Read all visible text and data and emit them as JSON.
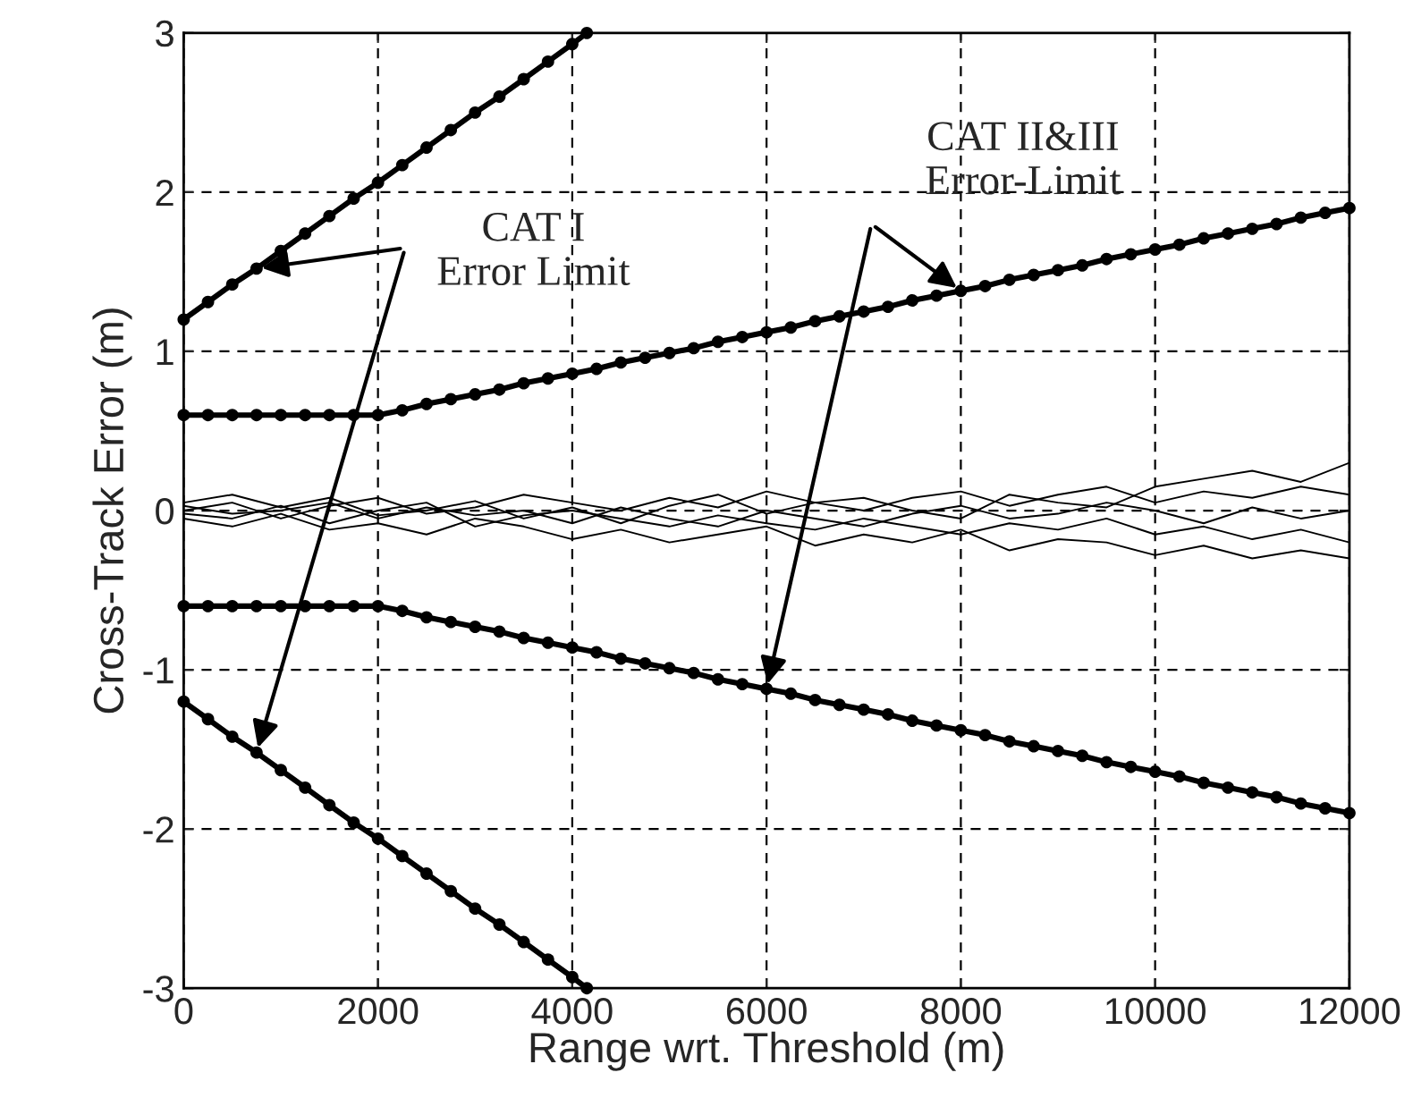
{
  "chart_data": {
    "type": "line",
    "xlabel": "Range wrt. Threshold (m)",
    "ylabel": "Cross-Track Error (m)",
    "xlim": [
      0,
      12000
    ],
    "ylim": [
      -3,
      3
    ],
    "xticks": [
      0,
      2000,
      4000,
      6000,
      8000,
      10000,
      12000
    ],
    "yticks": [
      -3,
      -2,
      -1,
      0,
      1,
      2,
      3
    ],
    "grid": true,
    "line_style": "solid",
    "annotations": [
      {
        "text": "CAT I\nError Limit",
        "x": 750,
        "y": 1.52
      },
      {
        "text": "CAT II&III\nError-Limit",
        "x": 8000,
        "y": 1.38
      }
    ],
    "series": [
      {
        "color": "#000000",
        "marker": "circle",
        "x": [
          0,
          250,
          500,
          750,
          1000,
          1250,
          1500,
          1750,
          2000,
          2250,
          2500,
          2750,
          3000,
          3250,
          3500,
          3750,
          4000,
          4150
        ],
        "values": [
          1.2,
          1.31,
          1.42,
          1.52,
          1.63,
          1.74,
          1.85,
          1.96,
          2.06,
          2.17,
          2.28,
          2.39,
          2.5,
          2.6,
          2.71,
          2.82,
          2.93,
          3.0
        ]
      },
      {
        "color": "#000000",
        "marker": "circle",
        "x": [
          0,
          250,
          500,
          750,
          1000,
          1250,
          1500,
          1750,
          2000,
          2250,
          2500,
          2750,
          3000,
          3250,
          3500,
          3750,
          4000,
          4150
        ],
        "values": [
          -1.2,
          -1.31,
          -1.42,
          -1.52,
          -1.63,
          -1.74,
          -1.85,
          -1.96,
          -2.06,
          -2.17,
          -2.28,
          -2.39,
          -2.5,
          -2.6,
          -2.71,
          -2.82,
          -2.93,
          -3.0
        ]
      },
      {
        "color": "#000000",
        "marker": "circle",
        "x": [
          0,
          250,
          500,
          750,
          1000,
          1250,
          1500,
          1750,
          2000,
          2250,
          2500,
          2750,
          3000,
          3250,
          3500,
          3750,
          4000,
          4250,
          4500,
          4750,
          5000,
          5250,
          5500,
          5750,
          6000,
          6250,
          6500,
          6750,
          7000,
          7250,
          7500,
          7750,
          8000,
          8250,
          8500,
          8750,
          9000,
          9250,
          9500,
          9750,
          10000,
          10250,
          10500,
          10750,
          11000,
          11250,
          11500,
          11750,
          12000
        ],
        "values": [
          0.6,
          0.6,
          0.6,
          0.6,
          0.6,
          0.6,
          0.6,
          0.6,
          0.6,
          0.63,
          0.67,
          0.7,
          0.73,
          0.76,
          0.8,
          0.83,
          0.86,
          0.89,
          0.93,
          0.96,
          0.99,
          1.02,
          1.06,
          1.09,
          1.12,
          1.15,
          1.19,
          1.22,
          1.25,
          1.28,
          1.32,
          1.35,
          1.38,
          1.41,
          1.45,
          1.48,
          1.51,
          1.54,
          1.58,
          1.61,
          1.64,
          1.67,
          1.71,
          1.74,
          1.77,
          1.8,
          1.84,
          1.87,
          1.9
        ]
      },
      {
        "color": "#000000",
        "marker": "circle",
        "x": [
          0,
          250,
          500,
          750,
          1000,
          1250,
          1500,
          1750,
          2000,
          2250,
          2500,
          2750,
          3000,
          3250,
          3500,
          3750,
          4000,
          4250,
          4500,
          4750,
          5000,
          5250,
          5500,
          5750,
          6000,
          6250,
          6500,
          6750,
          7000,
          7250,
          7500,
          7750,
          8000,
          8250,
          8500,
          8750,
          9000,
          9250,
          9500,
          9750,
          10000,
          10250,
          10500,
          10750,
          11000,
          11250,
          11500,
          11750,
          12000
        ],
        "values": [
          -0.6,
          -0.6,
          -0.6,
          -0.6,
          -0.6,
          -0.6,
          -0.6,
          -0.6,
          -0.6,
          -0.63,
          -0.67,
          -0.7,
          -0.73,
          -0.76,
          -0.8,
          -0.83,
          -0.86,
          -0.89,
          -0.93,
          -0.96,
          -0.99,
          -1.02,
          -1.06,
          -1.09,
          -1.12,
          -1.15,
          -1.19,
          -1.22,
          -1.25,
          -1.28,
          -1.32,
          -1.35,
          -1.38,
          -1.41,
          -1.45,
          -1.48,
          -1.51,
          -1.54,
          -1.58,
          -1.61,
          -1.64,
          -1.67,
          -1.71,
          -1.74,
          -1.77,
          -1.8,
          -1.84,
          -1.87,
          -1.9
        ]
      },
      {
        "color": "#000000",
        "marker": "none",
        "x": [
          0,
          500,
          1000,
          1500,
          2000,
          2500,
          3000,
          3500,
          4000,
          4500,
          5000,
          5500,
          6000,
          6500,
          7000,
          7500,
          8000,
          8500,
          9000,
          9500,
          10000,
          10500,
          11000,
          11500,
          12000
        ],
        "values": [
          0.05,
          0.1,
          0.02,
          0.08,
          -0.03,
          0.0,
          0.06,
          -0.05,
          0.02,
          -0.08,
          0.03,
          0.1,
          -0.02,
          0.05,
          0.08,
          0.0,
          -0.05,
          0.1,
          0.05,
          0.02,
          0.15,
          0.2,
          0.25,
          0.18,
          0.3
        ]
      },
      {
        "color": "#000000",
        "marker": "none",
        "x": [
          0,
          500,
          1000,
          1500,
          2000,
          2500,
          3000,
          3500,
          4000,
          4500,
          5000,
          5500,
          6000,
          6500,
          7000,
          7500,
          8000,
          8500,
          9000,
          9500,
          10000,
          10500,
          11000,
          11500,
          12000
        ],
        "values": [
          -0.05,
          -0.1,
          -0.02,
          -0.12,
          -0.08,
          -0.15,
          -0.05,
          -0.1,
          -0.18,
          -0.12,
          -0.2,
          -0.15,
          -0.1,
          -0.22,
          -0.15,
          -0.2,
          -0.12,
          -0.25,
          -0.18,
          -0.2,
          -0.28,
          -0.22,
          -0.3,
          -0.25,
          -0.3
        ]
      },
      {
        "color": "#000000",
        "marker": "none",
        "x": [
          0,
          500,
          1000,
          1500,
          2000,
          2500,
          3000,
          3500,
          4000,
          4500,
          5000,
          5500,
          6000,
          6500,
          7000,
          7500,
          8000,
          8500,
          9000,
          9500,
          10000,
          10500,
          11000,
          11500,
          12000
        ],
        "values": [
          0.0,
          0.05,
          -0.05,
          0.03,
          0.08,
          -0.02,
          0.02,
          0.1,
          0.05,
          0.0,
          0.08,
          0.02,
          0.12,
          0.05,
          0.0,
          0.08,
          0.12,
          0.03,
          0.1,
          0.15,
          0.05,
          0.12,
          0.08,
          0.15,
          0.1
        ]
      },
      {
        "color": "#000000",
        "marker": "none",
        "x": [
          0,
          500,
          1000,
          1500,
          2000,
          2500,
          3000,
          3500,
          4000,
          4500,
          5000,
          5500,
          6000,
          6500,
          7000,
          7500,
          8000,
          8500,
          9000,
          9500,
          10000,
          10500,
          11000,
          11500,
          12000
        ],
        "values": [
          -0.02,
          -0.05,
          0.03,
          -0.08,
          0.0,
          0.05,
          -0.1,
          -0.03,
          0.0,
          -0.05,
          -0.1,
          -0.03,
          -0.08,
          -0.12,
          -0.05,
          -0.1,
          -0.15,
          -0.08,
          -0.12,
          -0.05,
          -0.15,
          -0.1,
          -0.18,
          -0.12,
          -0.2
        ]
      },
      {
        "color": "#000000",
        "marker": "none",
        "x": [
          0,
          500,
          1000,
          1500,
          2000,
          2500,
          3000,
          3500,
          4000,
          4500,
          5000,
          5500,
          6000,
          6500,
          7000,
          7500,
          8000,
          8500,
          9000,
          9500,
          10000,
          10500,
          11000,
          11500,
          12000
        ],
        "values": [
          0.03,
          -0.02,
          0.0,
          0.05,
          -0.05,
          0.02,
          -0.03,
          0.0,
          -0.08,
          0.02,
          -0.05,
          -0.1,
          0.0,
          -0.05,
          -0.1,
          -0.02,
          0.03,
          -0.05,
          -0.02,
          0.05,
          0.0,
          -0.08,
          0.02,
          -0.05,
          0.0
        ]
      }
    ]
  }
}
